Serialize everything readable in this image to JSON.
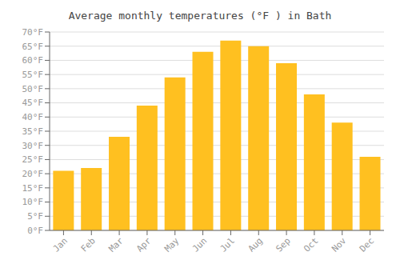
{
  "chart_data": {
    "type": "bar",
    "title": "Average monthly temperatures (°F ) in Bath",
    "categories": [
      "Jan",
      "Feb",
      "Mar",
      "Apr",
      "May",
      "Jun",
      "Jul",
      "Aug",
      "Sep",
      "Oct",
      "Nov",
      "Dec"
    ],
    "values": [
      21,
      22,
      33,
      44,
      54,
      63,
      67,
      65,
      59,
      48,
      38,
      26
    ],
    "color": "#FFC020",
    "ylim": [
      0,
      70
    ],
    "yticks": [
      {
        "value": 0,
        "label": "0°F"
      },
      {
        "value": 5,
        "label": "5°F"
      },
      {
        "value": 10,
        "label": "10°F"
      },
      {
        "value": 15,
        "label": "15°F"
      },
      {
        "value": 20,
        "label": "20°F"
      },
      {
        "value": 25,
        "label": "25°F"
      },
      {
        "value": 30,
        "label": "30°F"
      },
      {
        "value": 35,
        "label": "35°F"
      },
      {
        "value": 40,
        "label": "40°F"
      },
      {
        "value": 45,
        "label": "45°F"
      },
      {
        "value": 50,
        "label": "50°F"
      },
      {
        "value": 55,
        "label": "55°F"
      },
      {
        "value": 60,
        "label": "60°F"
      },
      {
        "value": 65,
        "label": "65°F"
      },
      {
        "value": 70,
        "label": "70°F"
      }
    ],
    "grid": true
  }
}
